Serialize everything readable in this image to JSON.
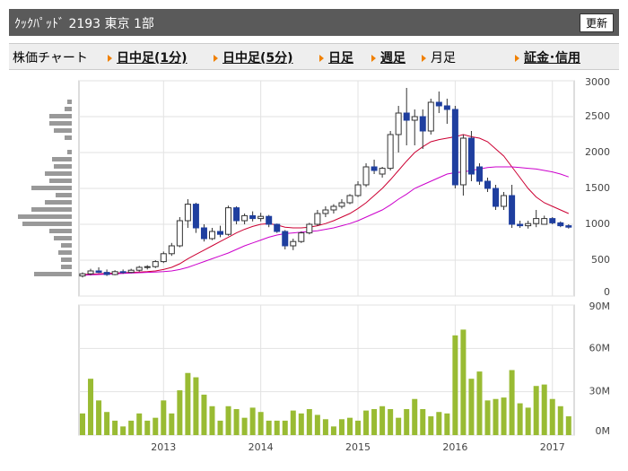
{
  "header": {
    "title": "ｸｯｸﾊﾟｯﾄﾞ 2193 東京 1部",
    "button": "更新"
  },
  "nav": [
    "株価チャート",
    "日中足(1分)",
    "日中足(5分)",
    "日足",
    "週足",
    "月足",
    "証金･信用"
  ],
  "chart_data": [
    {
      "type": "candlestick",
      "up_color": "#ffffff",
      "down_color": "#1f3f9f",
      "grid": true,
      "ylim": [
        0,
        3000
      ],
      "yticks": [
        0,
        500,
        1000,
        1500,
        2000,
        2500,
        3000
      ],
      "open": [
        280,
        310,
        350,
        330,
        300,
        340,
        330,
        360,
        400,
        410,
        480,
        590,
        700,
        1050,
        1280,
        950,
        800,
        900,
        860,
        1230,
        1050,
        1120,
        1080,
        1110,
        1000,
        900,
        700,
        760,
        880,
        1000,
        1150,
        1200,
        1250,
        1300,
        1400,
        1550,
        1800,
        1700,
        1780,
        2250,
        2550,
        2450,
        2500,
        2300,
        2700,
        2650,
        2600,
        1550,
        2200,
        1800,
        1600,
        1500,
        1250,
        1400,
        1000,
        980,
        1010,
        1000,
        1080,
        1020,
        980
      ],
      "high": [
        330,
        380,
        400,
        370,
        360,
        370,
        380,
        420,
        430,
        500,
        620,
        740,
        1100,
        1350,
        1300,
        1000,
        950,
        980,
        1260,
        1250,
        1150,
        1180,
        1160,
        1130,
        1010,
        920,
        800,
        900,
        1020,
        1200,
        1250,
        1280,
        1350,
        1420,
        1600,
        1850,
        1900,
        1800,
        2300,
        2650,
        2900,
        2600,
        2600,
        2750,
        2850,
        2750,
        2650,
        2250,
        2300,
        1850,
        1650,
        1550,
        1450,
        1550,
        1050,
        1050,
        1200,
        1120,
        1100,
        1040,
        1000
      ],
      "low": [
        260,
        290,
        320,
        280,
        290,
        310,
        320,
        340,
        370,
        390,
        460,
        560,
        680,
        950,
        880,
        760,
        780,
        820,
        840,
        1000,
        1000,
        1040,
        1040,
        960,
        880,
        650,
        640,
        740,
        860,
        980,
        1100,
        1150,
        1220,
        1280,
        1380,
        1520,
        1700,
        1650,
        1750,
        2000,
        2100,
        2100,
        2050,
        2250,
        2550,
        2400,
        1500,
        1400,
        1600,
        1550,
        1450,
        1200,
        1200,
        950,
        950,
        940,
        960,
        1000,
        1000,
        960,
        940
      ],
      "close": [
        310,
        350,
        330,
        300,
        340,
        330,
        360,
        400,
        410,
        480,
        590,
        700,
        1050,
        1280,
        950,
        800,
        900,
        860,
        1230,
        1050,
        1120,
        1080,
        1110,
        1000,
        900,
        700,
        760,
        880,
        1000,
        1150,
        1200,
        1250,
        1300,
        1400,
        1550,
        1800,
        1750,
        1780,
        2250,
        2550,
        2450,
        2500,
        2300,
        2700,
        2650,
        2600,
        1550,
        2200,
        1700,
        1600,
        1500,
        1250,
        1400,
        1000,
        980,
        1010,
        1080,
        1080,
        1020,
        980,
        960
      ],
      "series": [
        {
          "name": null,
          "color": "#cc0033",
          "values": [
            300,
            305,
            310,
            315,
            320,
            325,
            330,
            335,
            340,
            350,
            370,
            400,
            450,
            520,
            580,
            640,
            700,
            760,
            820,
            880,
            930,
            970,
            1000,
            1010,
            990,
            960,
            950,
            950,
            960,
            980,
            1010,
            1050,
            1100,
            1150,
            1220,
            1300,
            1400,
            1500,
            1620,
            1750,
            1880,
            2000,
            2080,
            2150,
            2180,
            2200,
            2220,
            2250,
            2220,
            2200,
            2150,
            2050,
            1950,
            1800,
            1650,
            1500,
            1380,
            1300,
            1250,
            1200,
            1150
          ]
        },
        {
          "name": null,
          "color": "#cc00cc",
          "values": [
            290,
            295,
            300,
            305,
            310,
            315,
            320,
            325,
            330,
            335,
            340,
            350,
            370,
            400,
            440,
            480,
            520,
            560,
            600,
            650,
            700,
            740,
            780,
            820,
            850,
            870,
            880,
            890,
            900,
            910,
            930,
            950,
            980,
            1010,
            1050,
            1100,
            1150,
            1200,
            1270,
            1350,
            1420,
            1500,
            1550,
            1600,
            1650,
            1700,
            1720,
            1730,
            1750,
            1770,
            1790,
            1800,
            1800,
            1800,
            1790,
            1780,
            1770,
            1750,
            1730,
            1700,
            1660
          ]
        }
      ],
      "volume_profile": {
        "color": "#999999",
        "prices": [
          300,
          400,
          500,
          600,
          700,
          800,
          900,
          1000,
          1100,
          1200,
          1300,
          1400,
          1500,
          1600,
          1700,
          1800,
          1900,
          2000,
          2200,
          2300,
          2400,
          2500,
          2600,
          2700
        ],
        "values": [
          42,
          12,
          12,
          15,
          12,
          20,
          25,
          55,
          60,
          45,
          30,
          18,
          45,
          25,
          30,
          20,
          22,
          5,
          8,
          20,
          25,
          25,
          8,
          5
        ]
      }
    },
    {
      "type": "bar",
      "color": "#99bb33",
      "grid": true,
      "categories": [
        null,
        null,
        null,
        null,
        null,
        null,
        null,
        null,
        null,
        null,
        "2013",
        null,
        null,
        null,
        null,
        null,
        null,
        null,
        null,
        null,
        null,
        null,
        "2014",
        null,
        null,
        null,
        null,
        null,
        null,
        null,
        null,
        null,
        null,
        null,
        "2015",
        null,
        null,
        null,
        null,
        null,
        null,
        null,
        null,
        null,
        null,
        null,
        "2016",
        null,
        null,
        null,
        null,
        null,
        null,
        null,
        null,
        null,
        null,
        null,
        "2017",
        null,
        null
      ],
      "values": [
        15,
        39,
        24,
        16,
        10,
        6,
        10,
        15,
        10,
        12,
        24,
        15,
        31,
        43,
        40,
        28,
        20,
        10,
        20,
        18,
        12,
        19,
        16,
        10,
        10,
        10,
        17,
        15,
        18,
        14,
        11,
        6,
        11,
        12,
        10,
        17,
        18,
        20,
        18,
        12,
        18,
        25,
        18,
        13,
        16,
        15,
        69,
        73,
        39,
        44,
        24,
        25,
        26,
        45,
        22,
        19,
        34,
        35,
        25,
        20,
        13
      ],
      "ylim": [
        0,
        90
      ],
      "yticks": [
        {
          "value": 0,
          "label": "0M"
        },
        {
          "value": 30,
          "label": "30M"
        },
        {
          "value": 60,
          "label": "60M"
        },
        {
          "value": 90,
          "label": "90M"
        }
      ]
    }
  ]
}
